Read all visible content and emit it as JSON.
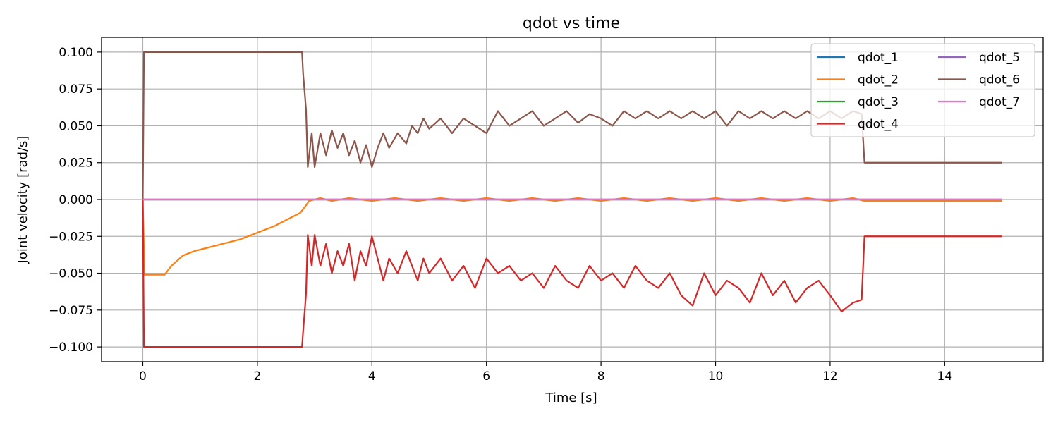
{
  "chart_data": {
    "type": "line",
    "title": "qdot vs time",
    "xlabel": "Time [s]",
    "ylabel": "Joint velocity [rad/s]",
    "xlim": [
      -0.72,
      15.72
    ],
    "ylim": [
      -0.11,
      0.11
    ],
    "xticks": [
      0,
      2,
      4,
      6,
      8,
      10,
      12,
      14
    ],
    "yticks": [
      -0.1,
      -0.075,
      -0.05,
      -0.025,
      0.0,
      0.025,
      0.05,
      0.075,
      0.1
    ],
    "xtick_labels": [
      "0",
      "2",
      "4",
      "6",
      "8",
      "10",
      "12",
      "14"
    ],
    "ytick_labels": [
      "−0.100",
      "−0.075",
      "−0.050",
      "−0.025",
      "0.000",
      "0.025",
      "0.050",
      "0.075",
      "0.100"
    ],
    "grid": true,
    "legend_position": "top-right",
    "legend_columns": 2,
    "series": [
      {
        "name": "qdot_1",
        "color": "#1f77b4",
        "points": [
          [
            0,
            0
          ],
          [
            15,
            0
          ]
        ]
      },
      {
        "name": "qdot_2",
        "color": "#ff7f0e",
        "points": [
          [
            0,
            0
          ],
          [
            0.03,
            -0.051
          ],
          [
            0.38,
            -0.051
          ],
          [
            0.5,
            -0.045
          ],
          [
            0.7,
            -0.038
          ],
          [
            0.9,
            -0.035
          ],
          [
            1.1,
            -0.033
          ],
          [
            1.3,
            -0.031
          ],
          [
            1.5,
            -0.029
          ],
          [
            1.7,
            -0.027
          ],
          [
            1.9,
            -0.024
          ],
          [
            2.1,
            -0.021
          ],
          [
            2.3,
            -0.018
          ],
          [
            2.5,
            -0.014
          ],
          [
            2.65,
            -0.011
          ],
          [
            2.75,
            -0.009
          ],
          [
            2.85,
            -0.004
          ],
          [
            2.9,
            -0.001
          ],
          [
            3.1,
            0.001
          ],
          [
            3.3,
            -0.001
          ],
          [
            3.6,
            0.001
          ],
          [
            4.0,
            -0.001
          ],
          [
            4.4,
            0.001
          ],
          [
            4.8,
            -0.001
          ],
          [
            5.2,
            0.001
          ],
          [
            5.6,
            -0.001
          ],
          [
            6.0,
            0.001
          ],
          [
            6.4,
            -0.001
          ],
          [
            6.8,
            0.001
          ],
          [
            7.2,
            -0.001
          ],
          [
            7.6,
            0.001
          ],
          [
            8.0,
            -0.001
          ],
          [
            8.4,
            0.001
          ],
          [
            8.8,
            -0.001
          ],
          [
            9.2,
            0.001
          ],
          [
            9.6,
            -0.001
          ],
          [
            10.0,
            0.001
          ],
          [
            10.4,
            -0.001
          ],
          [
            10.8,
            0.001
          ],
          [
            11.2,
            -0.001
          ],
          [
            11.6,
            0.001
          ],
          [
            12.0,
            -0.001
          ],
          [
            12.4,
            0.001
          ],
          [
            12.6,
            -0.001
          ],
          [
            15,
            -0.001
          ]
        ]
      },
      {
        "name": "qdot_3",
        "color": "#2ca02c",
        "points": [
          [
            0,
            0
          ],
          [
            15,
            0
          ]
        ]
      },
      {
        "name": "qdot_4",
        "color": "#d62728",
        "points": [
          [
            0,
            0
          ],
          [
            0.02,
            -0.1
          ],
          [
            2.78,
            -0.1
          ],
          [
            2.8,
            -0.089
          ],
          [
            2.85,
            -0.064
          ],
          [
            2.88,
            -0.024
          ],
          [
            2.95,
            -0.045
          ],
          [
            3.0,
            -0.024
          ],
          [
            3.1,
            -0.045
          ],
          [
            3.2,
            -0.03
          ],
          [
            3.3,
            -0.05
          ],
          [
            3.4,
            -0.035
          ],
          [
            3.5,
            -0.045
          ],
          [
            3.6,
            -0.03
          ],
          [
            3.7,
            -0.055
          ],
          [
            3.8,
            -0.035
          ],
          [
            3.9,
            -0.045
          ],
          [
            4.0,
            -0.025
          ],
          [
            4.1,
            -0.04
          ],
          [
            4.2,
            -0.055
          ],
          [
            4.3,
            -0.04
          ],
          [
            4.45,
            -0.05
          ],
          [
            4.6,
            -0.035
          ],
          [
            4.7,
            -0.045
          ],
          [
            4.8,
            -0.055
          ],
          [
            4.9,
            -0.04
          ],
          [
            5.0,
            -0.05
          ],
          [
            5.2,
            -0.04
          ],
          [
            5.4,
            -0.055
          ],
          [
            5.6,
            -0.045
          ],
          [
            5.8,
            -0.06
          ],
          [
            6.0,
            -0.04
          ],
          [
            6.2,
            -0.05
          ],
          [
            6.4,
            -0.045
          ],
          [
            6.6,
            -0.055
          ],
          [
            6.8,
            -0.05
          ],
          [
            7.0,
            -0.06
          ],
          [
            7.2,
            -0.045
          ],
          [
            7.4,
            -0.055
          ],
          [
            7.6,
            -0.06
          ],
          [
            7.8,
            -0.045
          ],
          [
            8.0,
            -0.055
          ],
          [
            8.2,
            -0.05
          ],
          [
            8.4,
            -0.06
          ],
          [
            8.6,
            -0.045
          ],
          [
            8.8,
            -0.055
          ],
          [
            9.0,
            -0.06
          ],
          [
            9.2,
            -0.05
          ],
          [
            9.4,
            -0.065
          ],
          [
            9.6,
            -0.072
          ],
          [
            9.8,
            -0.05
          ],
          [
            10.0,
            -0.065
          ],
          [
            10.2,
            -0.055
          ],
          [
            10.4,
            -0.06
          ],
          [
            10.6,
            -0.07
          ],
          [
            10.8,
            -0.05
          ],
          [
            11.0,
            -0.065
          ],
          [
            11.2,
            -0.055
          ],
          [
            11.4,
            -0.07
          ],
          [
            11.6,
            -0.06
          ],
          [
            11.8,
            -0.055
          ],
          [
            12.0,
            -0.065
          ],
          [
            12.2,
            -0.076
          ],
          [
            12.4,
            -0.07
          ],
          [
            12.55,
            -0.068
          ],
          [
            12.6,
            -0.025
          ],
          [
            15,
            -0.025
          ]
        ]
      },
      {
        "name": "qdot_5",
        "color": "#9467bd",
        "points": [
          [
            0,
            0
          ],
          [
            15,
            0
          ]
        ]
      },
      {
        "name": "qdot_6",
        "color": "#8c564b",
        "points": [
          [
            0,
            0
          ],
          [
            0.02,
            0.1
          ],
          [
            2.78,
            0.1
          ],
          [
            2.8,
            0.085
          ],
          [
            2.85,
            0.061
          ],
          [
            2.88,
            0.022
          ],
          [
            2.95,
            0.045
          ],
          [
            3.0,
            0.022
          ],
          [
            3.1,
            0.045
          ],
          [
            3.2,
            0.03
          ],
          [
            3.3,
            0.047
          ],
          [
            3.4,
            0.035
          ],
          [
            3.5,
            0.045
          ],
          [
            3.6,
            0.03
          ],
          [
            3.7,
            0.04
          ],
          [
            3.8,
            0.025
          ],
          [
            3.9,
            0.037
          ],
          [
            4.0,
            0.022
          ],
          [
            4.1,
            0.035
          ],
          [
            4.2,
            0.045
          ],
          [
            4.3,
            0.035
          ],
          [
            4.45,
            0.045
          ],
          [
            4.6,
            0.038
          ],
          [
            4.7,
            0.05
          ],
          [
            4.8,
            0.045
          ],
          [
            4.9,
            0.055
          ],
          [
            5.0,
            0.048
          ],
          [
            5.2,
            0.055
          ],
          [
            5.4,
            0.045
          ],
          [
            5.6,
            0.055
          ],
          [
            5.8,
            0.05
          ],
          [
            6.0,
            0.045
          ],
          [
            6.2,
            0.06
          ],
          [
            6.4,
            0.05
          ],
          [
            6.6,
            0.055
          ],
          [
            6.8,
            0.06
          ],
          [
            7.0,
            0.05
          ],
          [
            7.2,
            0.055
          ],
          [
            7.4,
            0.06
          ],
          [
            7.6,
            0.052
          ],
          [
            7.8,
            0.058
          ],
          [
            8.0,
            0.055
          ],
          [
            8.2,
            0.05
          ],
          [
            8.4,
            0.06
          ],
          [
            8.6,
            0.055
          ],
          [
            8.8,
            0.06
          ],
          [
            9.0,
            0.055
          ],
          [
            9.2,
            0.06
          ],
          [
            9.4,
            0.055
          ],
          [
            9.6,
            0.06
          ],
          [
            9.8,
            0.055
          ],
          [
            10.0,
            0.06
          ],
          [
            10.2,
            0.05
          ],
          [
            10.4,
            0.06
          ],
          [
            10.6,
            0.055
          ],
          [
            10.8,
            0.06
          ],
          [
            11.0,
            0.055
          ],
          [
            11.2,
            0.06
          ],
          [
            11.4,
            0.055
          ],
          [
            11.6,
            0.06
          ],
          [
            11.8,
            0.055
          ],
          [
            12.0,
            0.06
          ],
          [
            12.2,
            0.055
          ],
          [
            12.4,
            0.06
          ],
          [
            12.55,
            0.058
          ],
          [
            12.6,
            0.025
          ],
          [
            15,
            0.025
          ]
        ]
      },
      {
        "name": "qdot_7",
        "color": "#e377c2",
        "points": [
          [
            0,
            0
          ],
          [
            15,
            0
          ]
        ]
      }
    ]
  }
}
